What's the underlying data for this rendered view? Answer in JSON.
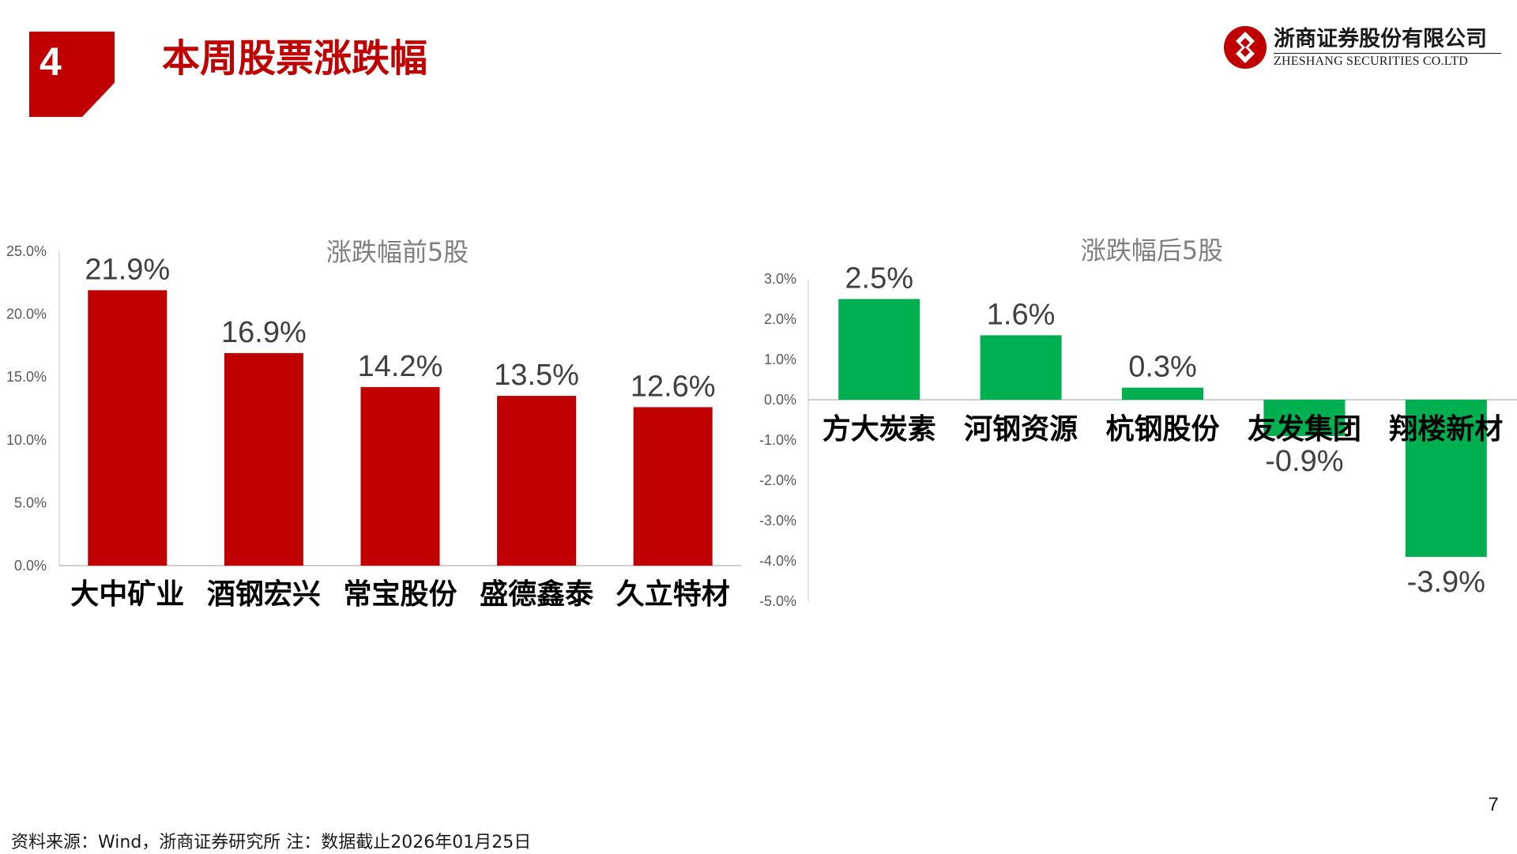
{
  "header": {
    "section_number": "4",
    "title": "本周股票涨跌幅"
  },
  "logo": {
    "name_cn": "浙商证券股份有限公司",
    "name_en": "ZHESHANG SECURITIES CO.LTD"
  },
  "colors": {
    "brand_red": "#c00000",
    "rise_bar": "#c00000",
    "fall_bar": "#00b050",
    "axis_text": "#595959",
    "title_text": "#7f7f7f"
  },
  "chart_data": [
    {
      "type": "bar",
      "title": "涨跌幅前5股",
      "categories": [
        "大中矿业",
        "酒钢宏兴",
        "常宝股份",
        "盛德鑫泰",
        "久立特材"
      ],
      "values": [
        21.9,
        16.9,
        14.2,
        13.5,
        12.6
      ],
      "data_labels": [
        "21.9%",
        "16.9%",
        "14.2%",
        "13.5%",
        "12.6%"
      ],
      "y_ticks": [
        "25.0%",
        "20.0%",
        "15.0%",
        "10.0%",
        "5.0%",
        "0.0%"
      ],
      "ylim": [
        0,
        25
      ],
      "grid": false,
      "color": "#c00000"
    },
    {
      "type": "bar",
      "title": "涨跌幅后5股",
      "categories": [
        "方大炭素",
        "河钢资源",
        "杭钢股份",
        "友发集团",
        "翔楼新材"
      ],
      "values": [
        2.5,
        1.6,
        0.3,
        -0.9,
        -3.9
      ],
      "data_labels": [
        "2.5%",
        "1.6%",
        "0.3%",
        "-0.9%",
        "-3.9%"
      ],
      "y_ticks": [
        "3.0%",
        "2.0%",
        "1.0%",
        "0.0%",
        "-1.0%",
        "-2.0%",
        "-3.0%",
        "-4.0%",
        "-5.0%"
      ],
      "ylim": [
        -5,
        3
      ],
      "grid": false,
      "color": "#00b050"
    }
  ],
  "footer": {
    "source": "资料来源：Wind，浙商证券研究所    注：数据截止2026年01月25日",
    "page_number": "7"
  }
}
